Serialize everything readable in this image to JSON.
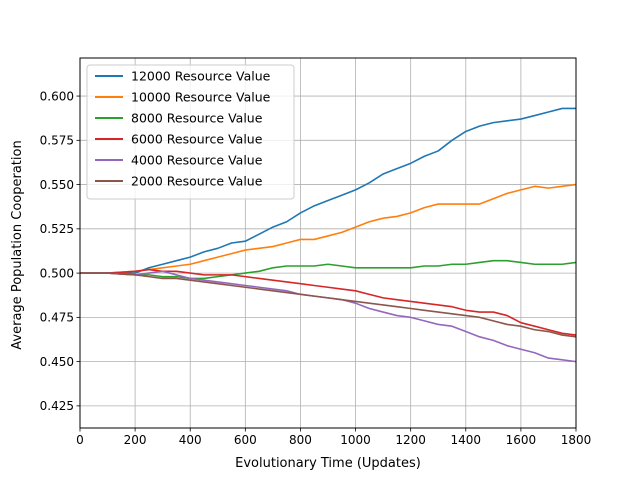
{
  "chart_data": {
    "type": "line",
    "title": "",
    "xlabel": "Evolutionary Time (Updates)",
    "ylabel": "Average Population Cooperation",
    "xlim": [
      0,
      1800
    ],
    "ylim": [
      0.4125,
      0.6215
    ],
    "xticks": [
      0,
      200,
      400,
      600,
      800,
      1000,
      1200,
      1400,
      1600,
      1800
    ],
    "xtick_labels": [
      "0",
      "200",
      "400",
      "600",
      "800",
      "1000",
      "1200",
      "1400",
      "1600",
      "1800"
    ],
    "yticks": [
      0.425,
      0.45,
      0.475,
      0.5,
      0.525,
      0.55,
      0.575,
      0.6
    ],
    "ytick_labels": [
      "0.425",
      "0.450",
      "0.475",
      "0.500",
      "0.525",
      "0.550",
      "0.575",
      "0.600"
    ],
    "grid": true,
    "legend_position": "upper-left",
    "x": [
      0,
      100,
      200,
      250,
      300,
      350,
      400,
      450,
      500,
      550,
      600,
      650,
      700,
      750,
      800,
      850,
      900,
      950,
      1000,
      1050,
      1100,
      1150,
      1200,
      1250,
      1300,
      1350,
      1400,
      1450,
      1500,
      1550,
      1600,
      1650,
      1700,
      1750,
      1800
    ],
    "series": [
      {
        "name": "12000 Resource Value",
        "color": "#1f77b4",
        "values": [
          0.5,
          0.5,
          0.5,
          0.503,
          0.505,
          0.507,
          0.509,
          0.512,
          0.514,
          0.517,
          0.518,
          0.522,
          0.526,
          0.529,
          0.534,
          0.538,
          0.541,
          0.544,
          0.547,
          0.551,
          0.556,
          0.559,
          0.562,
          0.566,
          0.569,
          0.575,
          0.58,
          0.583,
          0.585,
          0.586,
          0.587,
          0.589,
          0.591,
          0.593,
          0.593
        ]
      },
      {
        "name": "10000 Resource Value",
        "color": "#ff7f0e",
        "values": [
          0.5,
          0.5,
          0.501,
          0.502,
          0.503,
          0.504,
          0.505,
          0.507,
          0.509,
          0.511,
          0.513,
          0.514,
          0.515,
          0.517,
          0.519,
          0.519,
          0.521,
          0.523,
          0.526,
          0.529,
          0.531,
          0.532,
          0.534,
          0.537,
          0.539,
          0.539,
          0.539,
          0.539,
          0.542,
          0.545,
          0.547,
          0.549,
          0.548,
          0.549,
          0.55
        ]
      },
      {
        "name": "8000 Resource Value",
        "color": "#2ca02c",
        "values": [
          0.5,
          0.5,
          0.499,
          0.499,
          0.498,
          0.498,
          0.497,
          0.497,
          0.498,
          0.499,
          0.5,
          0.501,
          0.503,
          0.504,
          0.504,
          0.504,
          0.505,
          0.504,
          0.503,
          0.503,
          0.503,
          0.503,
          0.503,
          0.504,
          0.504,
          0.505,
          0.505,
          0.506,
          0.507,
          0.507,
          0.506,
          0.505,
          0.505,
          0.505,
          0.506
        ]
      },
      {
        "name": "6000 Resource Value",
        "color": "#d62728",
        "values": [
          0.5,
          0.5,
          0.501,
          0.502,
          0.501,
          0.501,
          0.5,
          0.499,
          0.499,
          0.499,
          0.498,
          0.497,
          0.496,
          0.495,
          0.494,
          0.493,
          0.492,
          0.491,
          0.49,
          0.488,
          0.486,
          0.485,
          0.484,
          0.483,
          0.482,
          0.481,
          0.479,
          0.478,
          0.478,
          0.476,
          0.472,
          0.47,
          0.468,
          0.466,
          0.465
        ]
      },
      {
        "name": "4000 Resource Value",
        "color": "#9467bd",
        "values": [
          0.5,
          0.5,
          0.499,
          0.5,
          0.501,
          0.499,
          0.497,
          0.496,
          0.495,
          0.494,
          0.493,
          0.492,
          0.491,
          0.49,
          0.488,
          0.487,
          0.486,
          0.485,
          0.483,
          0.48,
          0.478,
          0.476,
          0.475,
          0.473,
          0.471,
          0.47,
          0.467,
          0.464,
          0.462,
          0.459,
          0.457,
          0.455,
          0.452,
          0.451,
          0.45
        ]
      },
      {
        "name": "2000 Resource Value",
        "color": "#8c564b",
        "values": [
          0.5,
          0.5,
          0.499,
          0.498,
          0.497,
          0.497,
          0.496,
          0.495,
          0.494,
          0.493,
          0.492,
          0.491,
          0.49,
          0.489,
          0.488,
          0.487,
          0.486,
          0.485,
          0.484,
          0.483,
          0.482,
          0.481,
          0.48,
          0.479,
          0.478,
          0.477,
          0.476,
          0.475,
          0.473,
          0.471,
          0.47,
          0.468,
          0.467,
          0.465,
          0.464
        ]
      }
    ]
  }
}
